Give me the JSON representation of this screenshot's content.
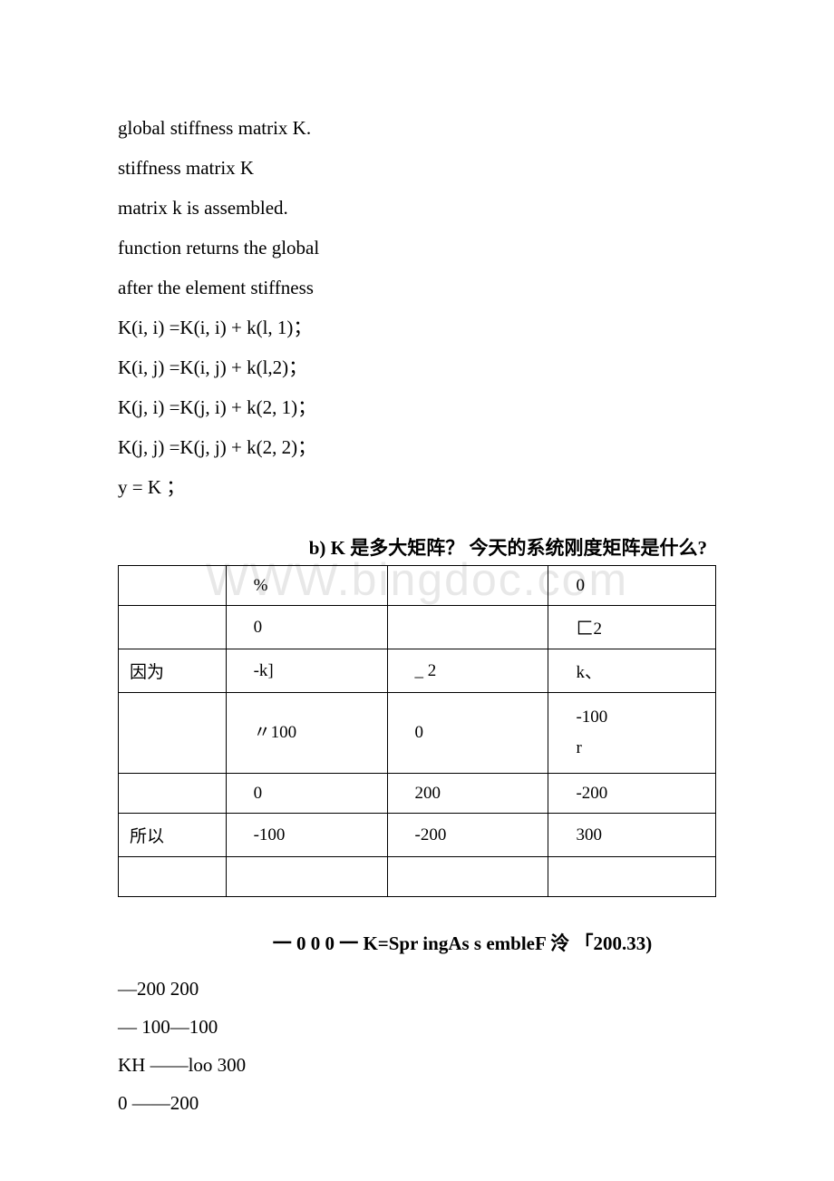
{
  "code": {
    "line1": "global stiffness matrix K.",
    "line2": "stiffness matrix K",
    "line3": "matrix k is assembled.",
    "line4": "function returns the global",
    "line5": "after the element stiffness",
    "line6": "K(i, i) =K(i, i) + k(l, 1)；",
    "line7": "K(i, j) =K(i, j) + k(l,2)；",
    "line8": "K(j, i) =K(j, i) + k(2, 1)；",
    "line9": "K(j, j) =K(j, j) + k(2, 2)；",
    "line10": "y = K ；"
  },
  "section_b": {
    "header": "b) K 是多大矩阵？ 今天的系统刚度矩阵是什么?"
  },
  "watermark": "WWW.bingdoc.com",
  "table": {
    "rows": [
      [
        "",
        "%",
        "",
        "0"
      ],
      [
        "",
        "0",
        "",
        "匚2"
      ],
      [
        "因为",
        "-k]",
        "_ 2",
        "k、"
      ],
      [
        "",
        "〃100",
        "0",
        "-100\nr"
      ],
      [
        "",
        "0",
        "200",
        "-200"
      ],
      [
        "所以",
        "-100",
        "-200",
        "300"
      ],
      [
        "",
        "",
        "",
        ""
      ]
    ]
  },
  "formula": {
    "header": "一 0 0 0 一 K=Spr ingAs s embleF 泠 「200.33)",
    "line1": "—200 200",
    "line2": "— 100—100",
    "line3": "KH ——loo 300",
    "line4": "0 ——200"
  }
}
